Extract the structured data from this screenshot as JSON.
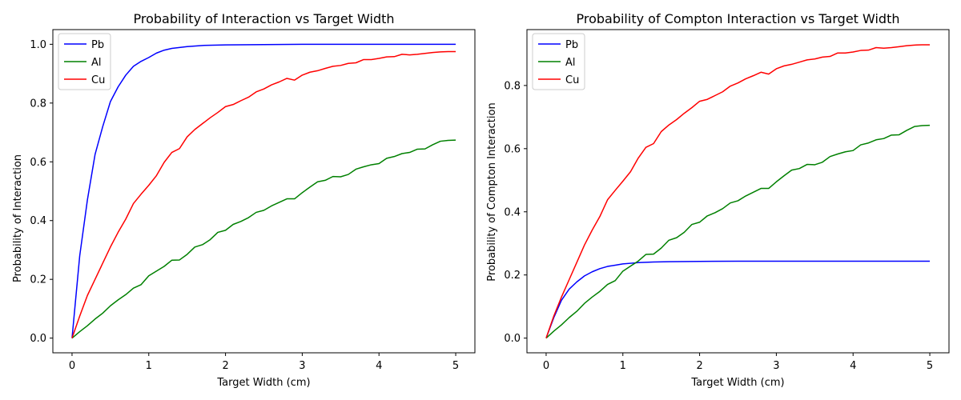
{
  "chart_data": [
    {
      "type": "line",
      "title": "Probability of Interaction vs Target Width",
      "xlabel": "Target Width (cm)",
      "ylabel": "Probability of Interaction",
      "xlim": [
        -0.25,
        5.25
      ],
      "ylim": [
        -0.05,
        1.05
      ],
      "xticks": [
        0,
        1,
        2,
        3,
        4,
        5
      ],
      "xtick_labels": [
        "0",
        "1",
        "2",
        "3",
        "4",
        "5"
      ],
      "yticks": [
        0.0,
        0.2,
        0.4,
        0.6,
        0.8,
        1.0
      ],
      "ytick_labels": [
        "0.0",
        "0.2",
        "0.4",
        "0.6",
        "0.8",
        "1.0"
      ],
      "grid": false,
      "legend": "top-left",
      "series": [
        {
          "name": "Pb",
          "color": "#0000ff",
          "x": [
            0,
            0.1,
            0.2,
            0.3,
            0.4,
            0.5,
            0.6,
            0.7,
            0.8,
            0.9,
            1.0,
            1.1,
            1.2,
            1.3,
            1.5,
            1.7,
            2.0,
            2.5,
            3.0,
            4.0,
            5.0
          ],
          "y": [
            0,
            0.28,
            0.47,
            0.625,
            0.72,
            0.805,
            0.855,
            0.895,
            0.925,
            0.942,
            0.955,
            0.97,
            0.98,
            0.986,
            0.992,
            0.996,
            0.998,
            0.999,
            1.0,
            1.0,
            1.0
          ]
        },
        {
          "name": "Al",
          "color": "#008000",
          "x": [
            0,
            0.1,
            0.2,
            0.3,
            0.4,
            0.5,
            0.6,
            0.7,
            0.8,
            0.9,
            1.0,
            1.1,
            1.2,
            1.3,
            1.4,
            1.5,
            1.6,
            1.7,
            1.8,
            1.9,
            2.0,
            2.1,
            2.2,
            2.3,
            2.4,
            2.5,
            2.6,
            2.7,
            2.8,
            2.9,
            3.0,
            3.1,
            3.2,
            3.3,
            3.4,
            3.5,
            3.6,
            3.7,
            3.8,
            3.9,
            4.0,
            4.1,
            4.2,
            4.3,
            4.4,
            4.5,
            4.6,
            4.7,
            4.8,
            4.9,
            5.0
          ],
          "y": [
            0,
            0.022,
            0.042,
            0.065,
            0.085,
            0.11,
            0.13,
            0.148,
            0.17,
            0.182,
            0.212,
            0.228,
            0.244,
            0.265,
            0.266,
            0.285,
            0.31,
            0.318,
            0.335,
            0.36,
            0.367,
            0.387,
            0.397,
            0.41,
            0.428,
            0.435,
            0.45,
            0.462,
            0.474,
            0.474,
            0.495,
            0.514,
            0.532,
            0.537,
            0.55,
            0.549,
            0.557,
            0.575,
            0.583,
            0.59,
            0.594,
            0.612,
            0.618,
            0.628,
            0.632,
            0.643,
            0.644,
            0.658,
            0.67,
            0.673,
            0.674
          ]
        },
        {
          "name": "Cu",
          "color": "#ff0000",
          "x": [
            0,
            0.1,
            0.2,
            0.3,
            0.4,
            0.5,
            0.6,
            0.7,
            0.8,
            0.9,
            1.0,
            1.1,
            1.2,
            1.3,
            1.4,
            1.5,
            1.6,
            1.7,
            1.8,
            1.9,
            2.0,
            2.1,
            2.2,
            2.3,
            2.4,
            2.5,
            2.6,
            2.7,
            2.8,
            2.9,
            3.0,
            3.1,
            3.2,
            3.3,
            3.4,
            3.5,
            3.6,
            3.7,
            3.8,
            3.9,
            4.0,
            4.1,
            4.2,
            4.3,
            4.4,
            4.5,
            4.6,
            4.7,
            4.8,
            4.9,
            5.0
          ],
          "y": [
            0,
            0.075,
            0.145,
            0.2,
            0.255,
            0.31,
            0.36,
            0.405,
            0.458,
            0.49,
            0.52,
            0.553,
            0.598,
            0.632,
            0.645,
            0.685,
            0.71,
            0.73,
            0.75,
            0.768,
            0.788,
            0.795,
            0.808,
            0.82,
            0.838,
            0.848,
            0.862,
            0.872,
            0.884,
            0.878,
            0.895,
            0.905,
            0.91,
            0.918,
            0.925,
            0.928,
            0.935,
            0.937,
            0.948,
            0.948,
            0.952,
            0.957,
            0.958,
            0.966,
            0.964,
            0.966,
            0.969,
            0.972,
            0.974,
            0.975,
            0.975
          ]
        }
      ]
    },
    {
      "type": "line",
      "title": "Probability of Compton Interaction vs Target Width",
      "xlabel": "Target Width (cm)",
      "ylabel": "Probability of Compton Interaction",
      "xlim": [
        -0.25,
        5.25
      ],
      "ylim": [
        -0.0465,
        0.977
      ],
      "xticks": [
        0,
        1,
        2,
        3,
        4,
        5
      ],
      "xtick_labels": [
        "0",
        "1",
        "2",
        "3",
        "4",
        "5"
      ],
      "yticks": [
        0.0,
        0.2,
        0.4,
        0.6,
        0.8
      ],
      "ytick_labels": [
        "0.0",
        "0.2",
        "0.4",
        "0.6",
        "0.8"
      ],
      "grid": false,
      "legend": "top-left",
      "series": [
        {
          "name": "Pb",
          "color": "#0000ff",
          "x": [
            0,
            0.1,
            0.2,
            0.3,
            0.4,
            0.5,
            0.6,
            0.7,
            0.8,
            0.9,
            1.0,
            1.2,
            1.4,
            1.6,
            2.0,
            2.5,
            3.0,
            4.0,
            5.0
          ],
          "y": [
            0,
            0.065,
            0.12,
            0.155,
            0.178,
            0.197,
            0.21,
            0.22,
            0.227,
            0.231,
            0.235,
            0.239,
            0.241,
            0.242,
            0.243,
            0.2435,
            0.2435,
            0.2435,
            0.2435
          ]
        },
        {
          "name": "Al",
          "color": "#008000",
          "x": [
            0,
            0.1,
            0.2,
            0.3,
            0.4,
            0.5,
            0.6,
            0.7,
            0.8,
            0.9,
            1.0,
            1.1,
            1.2,
            1.3,
            1.4,
            1.5,
            1.6,
            1.7,
            1.8,
            1.9,
            2.0,
            2.1,
            2.2,
            2.3,
            2.4,
            2.5,
            2.6,
            2.7,
            2.8,
            2.9,
            3.0,
            3.1,
            3.2,
            3.3,
            3.4,
            3.5,
            3.6,
            3.7,
            3.8,
            3.9,
            4.0,
            4.1,
            4.2,
            4.3,
            4.4,
            4.5,
            4.6,
            4.7,
            4.8,
            4.9,
            5.0
          ],
          "y": [
            0,
            0.022,
            0.042,
            0.065,
            0.085,
            0.11,
            0.13,
            0.148,
            0.17,
            0.182,
            0.212,
            0.228,
            0.244,
            0.265,
            0.266,
            0.285,
            0.31,
            0.318,
            0.335,
            0.36,
            0.367,
            0.387,
            0.397,
            0.41,
            0.428,
            0.435,
            0.45,
            0.462,
            0.474,
            0.474,
            0.495,
            0.514,
            0.532,
            0.537,
            0.55,
            0.549,
            0.557,
            0.575,
            0.583,
            0.59,
            0.594,
            0.612,
            0.618,
            0.628,
            0.632,
            0.643,
            0.644,
            0.658,
            0.67,
            0.673,
            0.674
          ]
        },
        {
          "name": "Cu",
          "color": "#ff0000",
          "x": [
            0,
            0.1,
            0.2,
            0.3,
            0.4,
            0.5,
            0.6,
            0.7,
            0.8,
            0.9,
            1.0,
            1.1,
            1.2,
            1.3,
            1.4,
            1.5,
            1.6,
            1.7,
            1.8,
            1.9,
            2.0,
            2.1,
            2.2,
            2.3,
            2.4,
            2.5,
            2.6,
            2.7,
            2.8,
            2.9,
            3.0,
            3.1,
            3.2,
            3.3,
            3.4,
            3.5,
            3.6,
            3.7,
            3.8,
            3.9,
            4.0,
            4.1,
            4.2,
            4.3,
            4.4,
            4.5,
            4.6,
            4.7,
            4.8,
            4.9,
            5.0
          ],
          "y": [
            0,
            0.07,
            0.13,
            0.185,
            0.24,
            0.295,
            0.342,
            0.385,
            0.438,
            0.468,
            0.497,
            0.527,
            0.57,
            0.604,
            0.616,
            0.654,
            0.675,
            0.692,
            0.712,
            0.73,
            0.75,
            0.756,
            0.768,
            0.78,
            0.798,
            0.808,
            0.821,
            0.831,
            0.842,
            0.836,
            0.853,
            0.862,
            0.867,
            0.874,
            0.881,
            0.884,
            0.89,
            0.892,
            0.903,
            0.903,
            0.906,
            0.911,
            0.912,
            0.92,
            0.918,
            0.92,
            0.923,
            0.926,
            0.928,
            0.929,
            0.929
          ]
        }
      ]
    }
  ]
}
